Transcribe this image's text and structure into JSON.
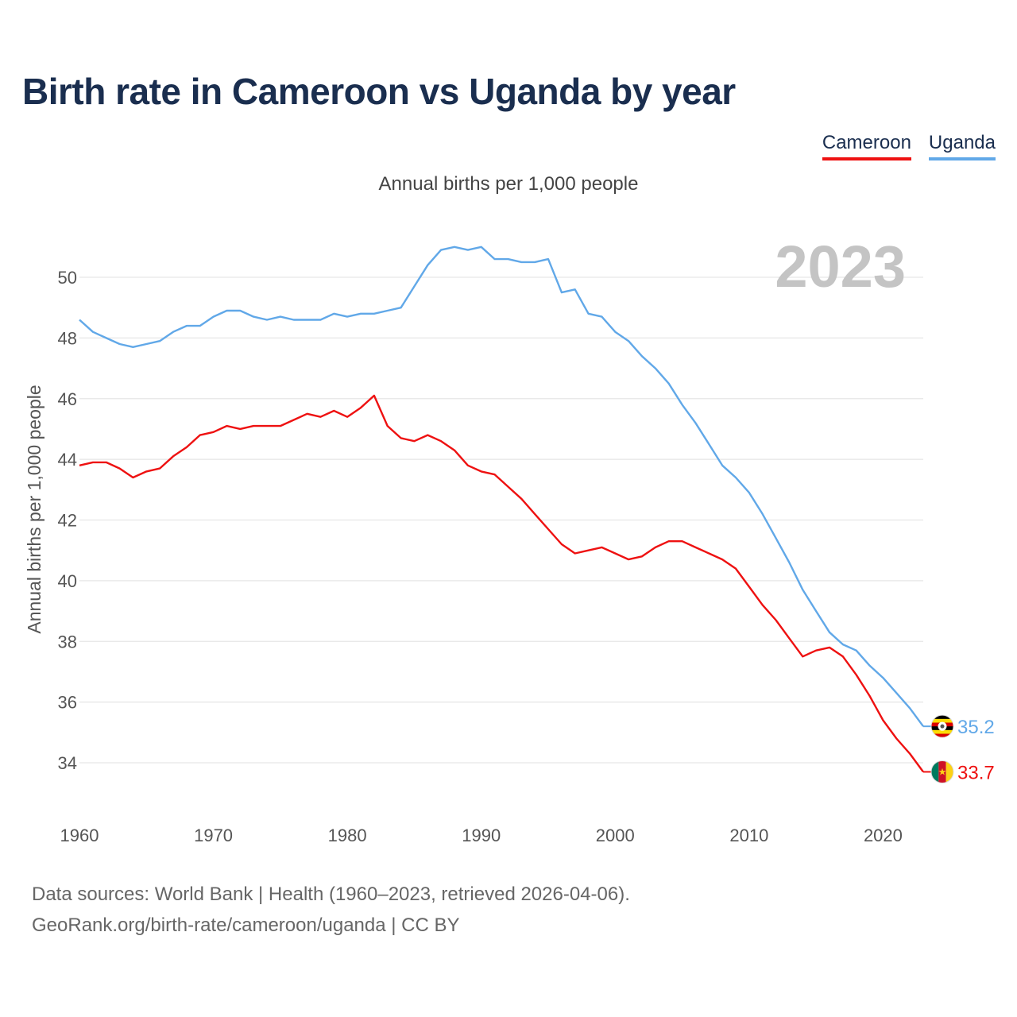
{
  "chart_data": {
    "type": "line",
    "title": "Birth rate in Cameroon vs Uganda by year",
    "subtitle": "Annual births per 1,000 people",
    "ylabel": "Annual births per 1,000 people",
    "xlabel": "",
    "current_year": "2023",
    "xlim": [
      1960,
      2023
    ],
    "ylim": [
      33,
      51.5
    ],
    "x_ticks": [
      1960,
      1970,
      1980,
      1990,
      2000,
      2010,
      2020
    ],
    "y_ticks": [
      34,
      36,
      38,
      40,
      42,
      44,
      46,
      48,
      50
    ],
    "x": [
      1960,
      1961,
      1962,
      1963,
      1964,
      1965,
      1966,
      1967,
      1968,
      1969,
      1970,
      1971,
      1972,
      1973,
      1974,
      1975,
      1976,
      1977,
      1978,
      1979,
      1980,
      1981,
      1982,
      1983,
      1984,
      1985,
      1986,
      1987,
      1988,
      1989,
      1990,
      1991,
      1992,
      1993,
      1994,
      1995,
      1996,
      1997,
      1998,
      1999,
      2000,
      2001,
      2002,
      2003,
      2004,
      2005,
      2006,
      2007,
      2008,
      2009,
      2010,
      2011,
      2012,
      2013,
      2014,
      2015,
      2016,
      2017,
      2018,
      2019,
      2020,
      2021,
      2022,
      2023
    ],
    "series": [
      {
        "name": "Cameroon",
        "color": "#ee1111",
        "end_label": "33.7",
        "values": [
          43.8,
          43.9,
          43.9,
          43.7,
          43.4,
          43.6,
          43.7,
          44.1,
          44.4,
          44.8,
          44.9,
          45.1,
          45.0,
          45.1,
          45.1,
          45.1,
          45.3,
          45.5,
          45.4,
          45.6,
          45.4,
          45.7,
          46.1,
          45.1,
          44.7,
          44.6,
          44.8,
          44.6,
          44.3,
          43.8,
          43.6,
          43.5,
          43.1,
          42.7,
          42.2,
          41.7,
          41.2,
          40.9,
          41.0,
          41.1,
          40.9,
          40.7,
          40.8,
          41.1,
          41.3,
          41.3,
          41.1,
          40.9,
          40.7,
          40.4,
          39.8,
          39.2,
          38.7,
          38.1,
          37.5,
          37.7,
          37.8,
          37.5,
          36.9,
          36.2,
          35.4,
          34.8,
          34.3,
          33.7
        ]
      },
      {
        "name": "Uganda",
        "color": "#61a8e8",
        "end_label": "35.2",
        "values": [
          48.6,
          48.2,
          48.0,
          47.8,
          47.7,
          47.8,
          47.9,
          48.2,
          48.4,
          48.4,
          48.7,
          48.9,
          48.9,
          48.7,
          48.6,
          48.7,
          48.6,
          48.6,
          48.6,
          48.8,
          48.7,
          48.8,
          48.8,
          48.9,
          49.0,
          49.7,
          50.4,
          50.9,
          51.0,
          50.9,
          51.0,
          50.6,
          50.6,
          50.5,
          50.5,
          50.6,
          49.5,
          49.6,
          48.8,
          48.7,
          48.2,
          47.9,
          47.4,
          47.0,
          46.5,
          45.8,
          45.2,
          44.5,
          43.8,
          43.4,
          42.9,
          42.2,
          41.4,
          40.6,
          39.7,
          39.0,
          38.3,
          37.9,
          37.7,
          37.2,
          36.8,
          36.3,
          35.8,
          35.2
        ]
      }
    ]
  },
  "legend": {
    "cameroon": "Cameroon",
    "uganda": "Uganda"
  },
  "source": {
    "line1": "Data sources: World Bank | Health (1960–2023, retrieved 2026-04-06).",
    "line2": "GeoRank.org/birth-rate/cameroon/uganda | CC BY"
  }
}
